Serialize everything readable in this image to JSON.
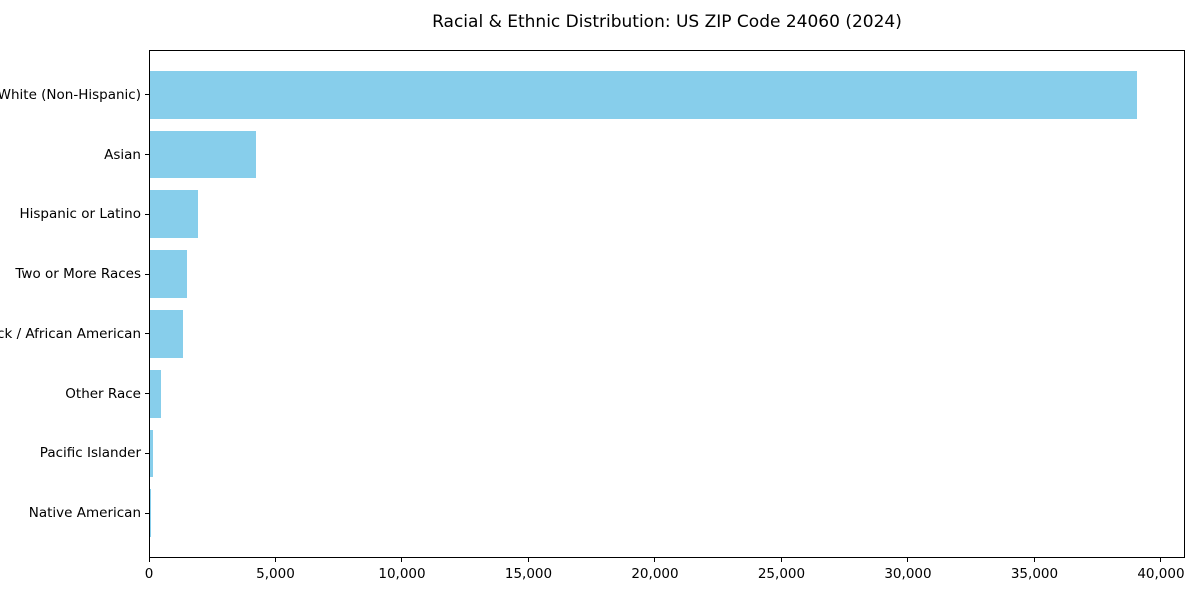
{
  "chart_data": {
    "type": "bar",
    "orientation": "horizontal",
    "title": "Racial & Ethnic Distribution: US ZIP Code 24060 (2024)",
    "categories": [
      "White (Non-Hispanic)",
      "Asian",
      "Hispanic or Latino",
      "Two or More Races",
      "Black / African American",
      "Other Race",
      "Pacific Islander",
      "Native American"
    ],
    "values": [
      39000,
      4200,
      1900,
      1460,
      1300,
      440,
      120,
      25
    ],
    "bar_color": "#87CEEB",
    "xlim": [
      0,
      40950
    ],
    "x_ticks": [
      {
        "value": 0,
        "label": "0"
      },
      {
        "value": 5000,
        "label": "5,000"
      },
      {
        "value": 10000,
        "label": "10,000"
      },
      {
        "value": 15000,
        "label": "15,000"
      },
      {
        "value": 20000,
        "label": "20,000"
      },
      {
        "value": 25000,
        "label": "25,000"
      },
      {
        "value": 30000,
        "label": "30,000"
      },
      {
        "value": 35000,
        "label": "35,000"
      },
      {
        "value": 40000,
        "label": "40,000"
      }
    ],
    "xlabel": "",
    "ylabel": "",
    "grid": false,
    "legend": null,
    "spine_color": "#000000",
    "text_color": "#000000",
    "background": "#ffffff"
  }
}
